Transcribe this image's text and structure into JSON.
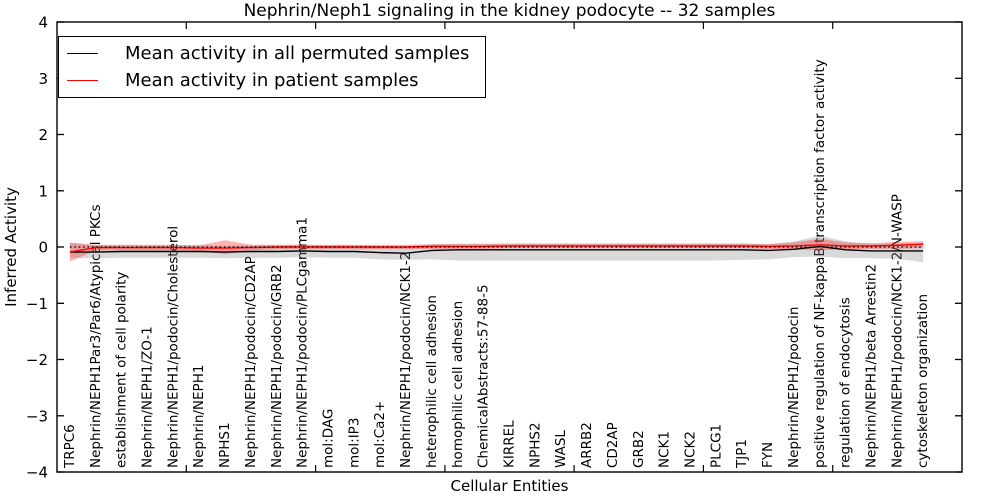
{
  "title": "Nephrin/Neph1 signaling in the kidney podocyte -- 32 samples",
  "axes": {
    "xlabel": "Cellular Entities",
    "ylabel": "Inferred Activity"
  },
  "legend": {
    "position": "upper left",
    "items": [
      {
        "label": "Mean activity in all permuted samples",
        "color": "#000000"
      },
      {
        "label": "Mean activity in patient samples",
        "color": "#ff0000"
      }
    ]
  },
  "chart_data": {
    "type": "line",
    "title": "Nephrin/Neph1 signaling in the kidney podocyte -- 32 samples",
    "xlabel": "Cellular Entities",
    "ylabel": "Inferred Activity",
    "ylim": [
      -4,
      4
    ],
    "grid": false,
    "zero_reference_line": true,
    "legend_position": "upper left",
    "yticks": [
      {
        "value": 4,
        "label": "4"
      },
      {
        "value": 3,
        "label": "3"
      },
      {
        "value": 2,
        "label": "2"
      },
      {
        "value": 1,
        "label": "1"
      },
      {
        "value": 0,
        "label": "0"
      },
      {
        "value": -1,
        "label": "−1"
      },
      {
        "value": -2,
        "label": "−2"
      },
      {
        "value": -3,
        "label": "−3"
      },
      {
        "value": -4,
        "label": "−4"
      }
    ],
    "categories": [
      "TRPC6",
      "Nephrin/NEPH1Par3/Par6/Atypical PKCs",
      "establishment of cell polarity",
      "Nephrin/NEPH1/ZO-1",
      "Nephrin/NEPH1/podocin/Cholesterol",
      "Nephrin/NEPH1",
      "NPHS1",
      "Nephrin/NEPH1/podocin/CD2AP",
      "Nephrin/NEPH1/podocin/GRB2",
      "Nephrin/NEPH1/podocin/PLCgamma1",
      "mol:DAG",
      "mol:IP3",
      "mol:Ca2+",
      "Nephrin/NEPH1/podocin/NCK1-2",
      "heterophilic cell adhesion",
      "homophilic cell adhesion",
      "ChemicalAbstracts:57-88-5",
      "KIRREL",
      "NPHS2",
      "WASL",
      "ARRB2",
      "CD2AP",
      "GRB2",
      "NCK1",
      "NCK2",
      "PLCG1",
      "TJP1",
      "FYN",
      "Nephrin/NEPH1/podocin",
      "positive regulation of NF-kappaB transcription factor activity",
      "regulation of endocytosis",
      "Nephrin/NEPH1/beta Arrestin2",
      "Nephrin/NEPH1/podocin/NCK1-2/N-WASP",
      "cytoskeleton organization"
    ],
    "series": [
      {
        "id": "permuted",
        "name": "Mean activity in all permuted samples",
        "color": "#000000",
        "values": [
          -0.09,
          -0.09,
          -0.08,
          -0.08,
          -0.08,
          -0.08,
          -0.09,
          -0.08,
          -0.08,
          -0.07,
          -0.08,
          -0.08,
          -0.1,
          -0.11,
          -0.06,
          -0.05,
          -0.05,
          -0.05,
          -0.05,
          -0.05,
          -0.05,
          -0.05,
          -0.05,
          -0.05,
          -0.05,
          -0.05,
          -0.05,
          -0.06,
          -0.04,
          0.01,
          -0.05,
          -0.07,
          -0.07,
          -0.07
        ],
        "band": {
          "color": "rgba(130,130,130,0.30)",
          "upper": [
            0.07,
            0.03,
            0.03,
            0.03,
            0.03,
            0.03,
            0.02,
            0.03,
            0.03,
            0.04,
            0.03,
            0.03,
            0.02,
            0.01,
            0.05,
            0.06,
            0.06,
            0.06,
            0.06,
            0.06,
            0.06,
            0.06,
            0.06,
            0.06,
            0.06,
            0.06,
            0.06,
            0.05,
            0.1,
            0.2,
            0.1,
            0.05,
            0.06,
            0.08
          ],
          "lower": [
            -0.19,
            -0.2,
            -0.19,
            -0.19,
            -0.19,
            -0.19,
            -0.2,
            -0.19,
            -0.19,
            -0.18,
            -0.19,
            -0.19,
            -0.22,
            -0.23,
            -0.22,
            -0.24,
            -0.24,
            -0.24,
            -0.24,
            -0.24,
            -0.24,
            -0.24,
            -0.24,
            -0.24,
            -0.24,
            -0.24,
            -0.23,
            -0.22,
            -0.18,
            -0.17,
            -0.2,
            -0.2,
            -0.21,
            -0.27
          ]
        }
      },
      {
        "id": "patient",
        "name": "Mean activity in patient samples",
        "color": "#ff0000",
        "values": [
          -0.09,
          -0.01,
          -0.01,
          -0.01,
          -0.01,
          -0.02,
          -0.02,
          -0.01,
          0.0,
          0.0,
          0.0,
          0.0,
          0.0,
          0.0,
          0.01,
          0.01,
          0.01,
          0.02,
          0.02,
          0.02,
          0.02,
          0.02,
          0.02,
          0.02,
          0.02,
          0.02,
          0.02,
          0.01,
          0.02,
          0.04,
          0.02,
          0.02,
          0.03,
          0.05
        ],
        "band": {
          "color": "rgba(255,25,25,0.33)",
          "upper": [
            0.08,
            0.04,
            0.04,
            0.04,
            0.04,
            0.03,
            0.12,
            0.04,
            0.04,
            0.04,
            0.04,
            0.04,
            0.04,
            0.04,
            0.05,
            0.05,
            0.05,
            0.06,
            0.06,
            0.06,
            0.06,
            0.06,
            0.06,
            0.06,
            0.06,
            0.06,
            0.06,
            0.05,
            0.08,
            0.15,
            0.08,
            0.07,
            0.09,
            0.1
          ],
          "lower": [
            -0.26,
            -0.06,
            -0.06,
            -0.06,
            -0.06,
            -0.07,
            -0.13,
            -0.06,
            -0.04,
            -0.04,
            -0.04,
            -0.04,
            -0.04,
            -0.04,
            -0.03,
            -0.03,
            -0.03,
            -0.02,
            -0.02,
            -0.02,
            -0.02,
            -0.02,
            -0.02,
            -0.02,
            -0.02,
            -0.02,
            -0.02,
            -0.03,
            -0.04,
            -0.06,
            -0.04,
            -0.03,
            -0.03,
            -0.02
          ]
        }
      }
    ]
  }
}
